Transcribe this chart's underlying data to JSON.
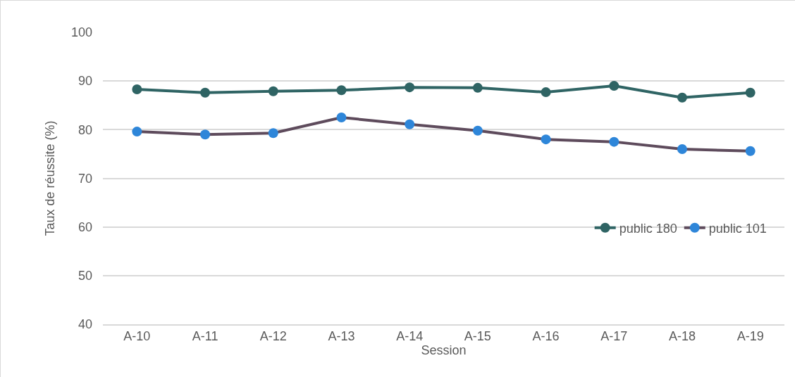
{
  "chart_data": {
    "type": "line",
    "xlabel": "Session",
    "ylabel": "Taux de réussite (%)",
    "categories": [
      "A-10",
      "A-11",
      "A-12",
      "A-13",
      "A-14",
      "A-15",
      "A-16",
      "A-17",
      "A-18",
      "A-19"
    ],
    "series": [
      {
        "name": "public 180",
        "color": "#2f6464",
        "values": [
          88.3,
          87.6,
          87.9,
          88.1,
          88.7,
          88.6,
          87.7,
          89.0,
          86.6,
          87.6
        ]
      },
      {
        "name": "public 101",
        "color": "#5e4b5c",
        "colors": [
          "#2e86d9",
          "#2e86d9",
          "#2e86d9",
          "#2e86d9",
          "#2e86d9",
          "#2e86d9",
          "#2e86d9",
          "#2e86d9",
          "#2e86d9",
          "#2e86d9"
        ],
        "values": [
          79.6,
          79.0,
          79.3,
          82.5,
          81.1,
          79.8,
          78.0,
          77.5,
          76.0,
          75.6
        ]
      }
    ],
    "ylim": [
      40,
      100
    ],
    "yticks": [
      40,
      50,
      60,
      70,
      80,
      90,
      100
    ],
    "grid": "y",
    "legend": "right",
    "marker": "circle",
    "line_style": "solid"
  }
}
